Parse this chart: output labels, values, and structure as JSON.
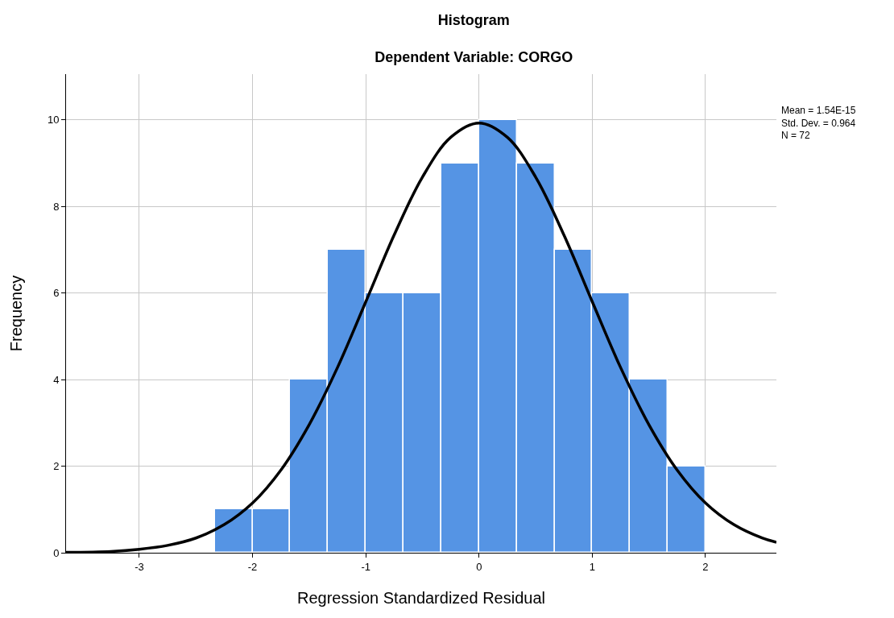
{
  "chart_data": {
    "type": "histogram",
    "title": "Histogram",
    "subtitle": "Dependent Variable: CORGO",
    "xlabel": "Regression Standardized Residual",
    "ylabel": "Frequency",
    "bins": [
      -2.333,
      -2.0,
      -1.667,
      -1.333,
      -1.0,
      -0.667,
      -0.333,
      0.0,
      0.333,
      0.667,
      1.0,
      1.333,
      1.667,
      2.0
    ],
    "values": [
      1,
      1,
      4,
      7,
      6,
      6,
      9,
      10,
      9,
      7,
      6,
      4,
      2
    ],
    "color": "#5594e4",
    "series": [
      {
        "type": "line",
        "color": "#000000",
        "x": [
          -3.647,
          -3.25,
          -3.0,
          -2.75,
          -2.5,
          -2.25,
          -2.0,
          -1.75,
          -1.5,
          -1.25,
          -1.0,
          -0.75,
          -0.5,
          -0.25,
          0.0,
          0.25,
          0.5,
          0.75,
          1.0,
          1.25,
          1.5,
          1.75,
          2.0,
          2.25,
          2.5,
          2.626
        ],
        "values": [
          0.01,
          0.03,
          0.08,
          0.17,
          0.34,
          0.65,
          1.15,
          1.91,
          2.96,
          4.28,
          5.8,
          7.34,
          8.68,
          9.6,
          9.93,
          9.6,
          8.68,
          7.34,
          5.8,
          4.28,
          2.96,
          1.91,
          1.15,
          0.65,
          0.34,
          0.24
        ]
      }
    ],
    "xlim": [
      -3.647,
      2.626
    ],
    "xticks": [
      -3,
      -2,
      -1,
      0,
      1,
      2
    ],
    "ylim": [
      0,
      11.06
    ],
    "yticks": [
      0,
      2,
      4,
      6,
      8,
      10
    ],
    "grid": true,
    "annotations": [
      "Mean = 1.54E-15",
      "Std. Dev. = 0.964",
      "N = 72"
    ]
  }
}
